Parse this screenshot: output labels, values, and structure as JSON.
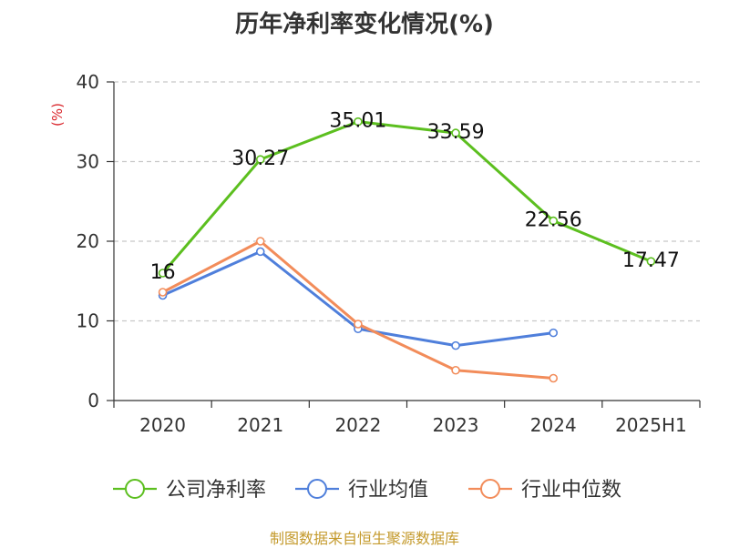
{
  "chart_data": {
    "type": "line",
    "title": "历年净利率变化情况(%)",
    "ylabel": "(%)",
    "categories": [
      "2020",
      "2021",
      "2022",
      "2023",
      "2024",
      "2025H1"
    ],
    "ylim": [
      0,
      40
    ],
    "yticks": [
      "0",
      "10",
      "20",
      "30",
      "40"
    ],
    "grid": "horizontal-dashed",
    "legend_position": "bottom",
    "series": [
      {
        "name": "公司净利率",
        "color": "#5cbf1f",
        "values": [
          16,
          30.27,
          35.01,
          33.59,
          22.56,
          17.47
        ],
        "labels": [
          "16",
          "30.27",
          "35.01",
          "33.59",
          "22.56",
          "17.47"
        ]
      },
      {
        "name": "行业均值",
        "color": "#4f7fdb",
        "values": [
          13.2,
          18.7,
          9.0,
          6.9,
          8.5,
          null
        ]
      },
      {
        "name": "行业中位数",
        "color": "#f28c5a",
        "values": [
          13.6,
          20.0,
          9.6,
          3.8,
          2.8,
          null
        ]
      }
    ]
  },
  "footer": {
    "source": "制图数据来自恒生聚源数据库"
  }
}
